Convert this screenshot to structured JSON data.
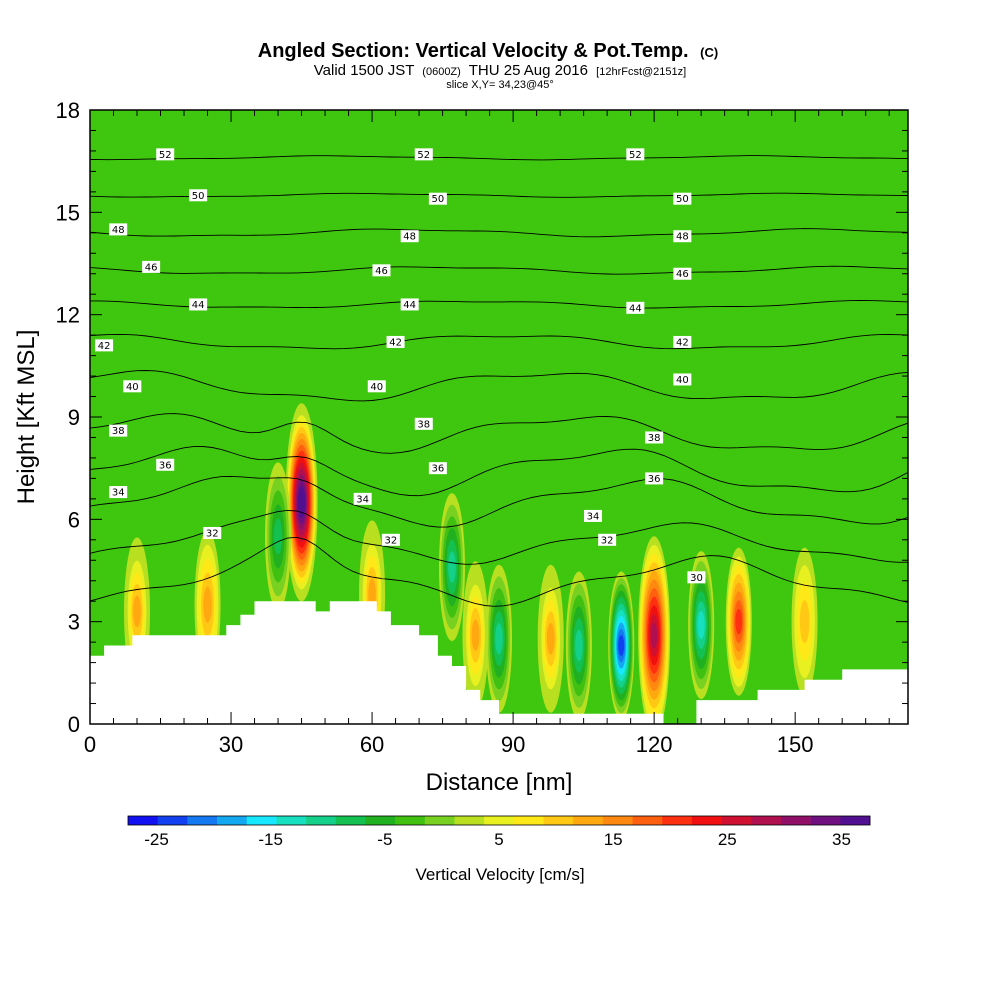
{
  "header": {
    "title_main": "Angled Section: Vertical Velocity & Pot.Temp.",
    "title_unit": "(C)",
    "valid_a": "Valid 1500 JST",
    "valid_b": "(0600Z)",
    "valid_c": "THU 25 Aug 2016",
    "valid_d": "[12hrFcst@2151z]",
    "slice": "slice X,Y= 34,23@45°"
  },
  "colors": {
    "background_field": "#3fc70f",
    "terrain": "#ffffff",
    "contour": "#000000",
    "colorbar": [
      "#1010f0",
      "#1040f0",
      "#1478f0",
      "#14a8f0",
      "#18e8ff",
      "#16e0c0",
      "#14d088",
      "#14c050",
      "#20b020",
      "#40c010",
      "#78d020",
      "#b8e020",
      "#e8f020",
      "#ffe818",
      "#ffc814",
      "#ffa810",
      "#ff8810",
      "#ff6010",
      "#ff3010",
      "#f01010",
      "#d01030",
      "#b01050",
      "#901068",
      "#701080",
      "#501090"
    ]
  },
  "chart_data": {
    "type": "heatmap",
    "title": "Angled Section: Vertical Velocity & Pot.Temp. (C)",
    "xlabel": "Distance [nm]",
    "ylabel": "Height [Kft MSL]",
    "xlim": [
      0,
      174
    ],
    "ylim": [
      0,
      18
    ],
    "x_ticks": [
      0,
      30,
      60,
      90,
      120,
      150
    ],
    "y_ticks": [
      0,
      3,
      6,
      9,
      12,
      15,
      18
    ],
    "x_tick_labels": [
      "0",
      "30",
      "60",
      "90",
      "120",
      "150"
    ],
    "y_tick_labels": [
      "0",
      "3",
      "6",
      "9",
      "12",
      "15",
      "18"
    ],
    "colorbar": {
      "label": "Vertical Velocity [cm/s]",
      "min": -27.5,
      "max": 37.5,
      "step": 2.5,
      "tick_values": [
        -25,
        -15,
        -5,
        5,
        15,
        25,
        35
      ],
      "tick_labels": [
        "-25",
        "-15",
        "-5",
        "5",
        "15",
        "25",
        "35"
      ]
    },
    "velocity_cells": [
      {
        "x": 45,
        "y": 6.5,
        "value": 37,
        "kind": "updraft"
      },
      {
        "x": 113,
        "y": 2.3,
        "value": -25,
        "kind": "downdraft"
      },
      {
        "x": 130,
        "y": 2.9,
        "value": -14,
        "kind": "downdraft"
      },
      {
        "x": 120,
        "y": 2.6,
        "value": 26,
        "kind": "updraft"
      },
      {
        "x": 138,
        "y": 3.0,
        "value": 18,
        "kind": "updraft"
      },
      {
        "x": 98,
        "y": 2.5,
        "value": 12,
        "kind": "updraft"
      },
      {
        "x": 87,
        "y": 2.5,
        "value": -12,
        "kind": "downdraft"
      },
      {
        "x": 104,
        "y": 2.3,
        "value": -12,
        "kind": "downdraft"
      },
      {
        "x": 77,
        "y": 4.6,
        "value": -12,
        "kind": "downdraft"
      },
      {
        "x": 82,
        "y": 2.6,
        "value": 12,
        "kind": "updraft"
      },
      {
        "x": 10,
        "y": 3.3,
        "value": 12,
        "kind": "updraft"
      },
      {
        "x": 25,
        "y": 3.5,
        "value": 10,
        "kind": "updraft"
      },
      {
        "x": 60,
        "y": 3.8,
        "value": 12,
        "kind": "updraft"
      },
      {
        "x": 152,
        "y": 3.0,
        "value": 8,
        "kind": "updraft"
      },
      {
        "x": 40,
        "y": 5.5,
        "value": -10,
        "kind": "downdraft"
      }
    ],
    "terrain": [
      [
        0,
        2
      ],
      [
        3,
        2
      ],
      [
        3,
        2.3
      ],
      [
        9,
        2.3
      ],
      [
        9,
        2.6
      ],
      [
        29,
        2.6
      ],
      [
        29,
        2.9
      ],
      [
        32,
        2.9
      ],
      [
        32,
        3.2
      ],
      [
        35,
        3.2
      ],
      [
        35,
        3.6
      ],
      [
        48,
        3.6
      ],
      [
        48,
        3.3
      ],
      [
        51,
        3.3
      ],
      [
        51,
        3.6
      ],
      [
        61,
        3.6
      ],
      [
        61,
        3.3
      ],
      [
        64,
        3.3
      ],
      [
        64,
        2.9
      ],
      [
        70,
        2.9
      ],
      [
        70,
        2.6
      ],
      [
        74,
        2.6
      ],
      [
        74,
        2
      ],
      [
        77,
        2
      ],
      [
        77,
        1.7
      ],
      [
        80,
        1.7
      ],
      [
        80,
        1
      ],
      [
        83,
        1
      ],
      [
        83,
        0.7
      ],
      [
        87,
        0.7
      ],
      [
        87,
        0.3
      ],
      [
        122,
        0.3
      ],
      [
        122,
        0
      ],
      [
        129,
        0
      ],
      [
        129,
        0.7
      ],
      [
        142,
        0.7
      ],
      [
        142,
        1
      ],
      [
        152,
        1
      ],
      [
        152,
        1.3
      ],
      [
        160,
        1.3
      ],
      [
        160,
        1.6
      ],
      [
        174,
        1.6
      ],
      [
        174,
        0
      ],
      [
        0,
        0
      ]
    ],
    "theta_contours": [
      {
        "value": 30,
        "base": 4.2,
        "amp": 0.6,
        "labels": [
          [
            129,
            4.3
          ]
        ]
      },
      {
        "value": 32,
        "base": 5.3,
        "amp": 0.5,
        "labels": [
          [
            26,
            5.6
          ],
          [
            64,
            5.4
          ],
          [
            110,
            5.4
          ]
        ]
      },
      {
        "value": 34,
        "base": 6.5,
        "amp": 0.6,
        "labels": [
          [
            6,
            6.8
          ],
          [
            58,
            6.6
          ],
          [
            107,
            6.1
          ]
        ]
      },
      {
        "value": 36,
        "base": 7.4,
        "amp": 0.6,
        "labels": [
          [
            16,
            7.6
          ],
          [
            74,
            7.5
          ],
          [
            120,
            7.2
          ]
        ]
      },
      {
        "value": 38,
        "base": 8.5,
        "amp": 0.5,
        "labels": [
          [
            6,
            8.6
          ],
          [
            71,
            8.8
          ],
          [
            120,
            8.4
          ]
        ]
      },
      {
        "value": 40,
        "base": 9.9,
        "amp": 0.4,
        "labels": [
          [
            9,
            9.9
          ],
          [
            61,
            9.9
          ],
          [
            126,
            10.1
          ]
        ]
      },
      {
        "value": 42,
        "base": 11.2,
        "amp": 0.2,
        "labels": [
          [
            3,
            11.1
          ],
          [
            65,
            11.2
          ],
          [
            126,
            11.2
          ]
        ]
      },
      {
        "value": 44,
        "base": 12.3,
        "amp": 0.1,
        "labels": [
          [
            23,
            12.3
          ],
          [
            68,
            12.3
          ],
          [
            116,
            12.2
          ]
        ]
      },
      {
        "value": 46,
        "base": 13.3,
        "amp": 0.1,
        "labels": [
          [
            13,
            13.4
          ],
          [
            62,
            13.3
          ],
          [
            126,
            13.2
          ]
        ]
      },
      {
        "value": 48,
        "base": 14.4,
        "amp": 0.1,
        "labels": [
          [
            6,
            14.5
          ],
          [
            68,
            14.3
          ],
          [
            126,
            14.3
          ]
        ]
      },
      {
        "value": 50,
        "base": 15.5,
        "amp": 0.05,
        "labels": [
          [
            23,
            15.5
          ],
          [
            74,
            15.4
          ],
          [
            126,
            15.4
          ]
        ]
      },
      {
        "value": 52,
        "base": 16.6,
        "amp": 0.05,
        "labels": [
          [
            16,
            16.7
          ],
          [
            71,
            16.7
          ],
          [
            116,
            16.7
          ]
        ]
      }
    ]
  }
}
